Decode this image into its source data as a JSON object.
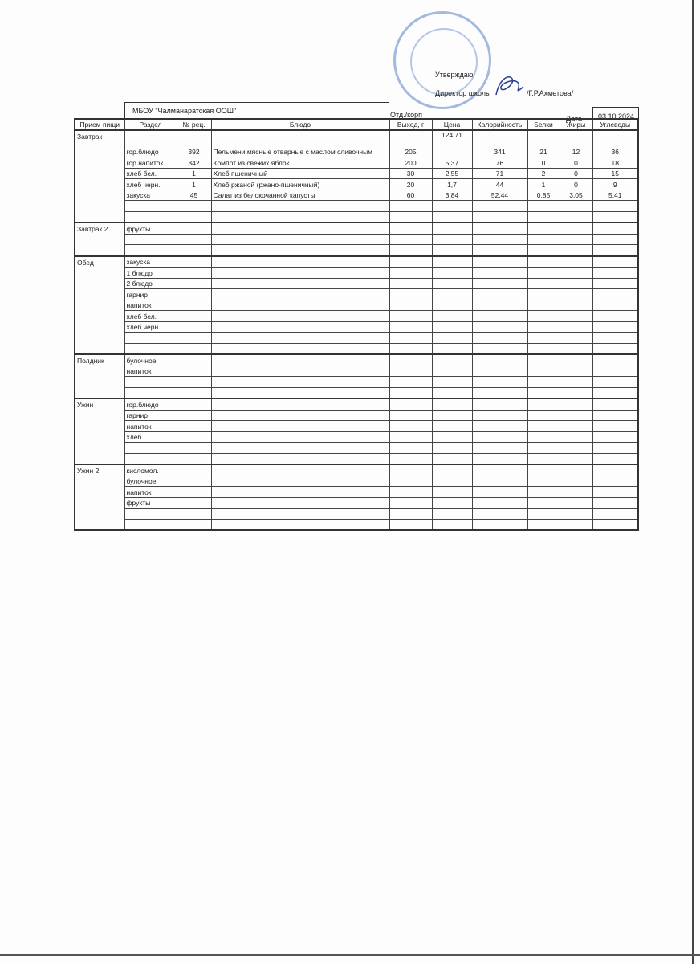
{
  "header": {
    "approve": "Утверждаю",
    "director": "Директор школы",
    "director_name": "/Г.Р.Ахметова/",
    "school": "МБОУ \"Чалманаратская ООШ\"",
    "dept": "Отд./корп",
    "date_label": "Дата",
    "date": "03.10.2024"
  },
  "columns": [
    "Прием пищи",
    "Раздел",
    "№ рец.",
    "Блюдо",
    "Выход, г",
    "Цена",
    "Калорийность",
    "Белки",
    "Жиры",
    "Углеводы"
  ],
  "meals": [
    {
      "name": "Завтрак",
      "rows": [
        [
          "гор.блюдо",
          "392",
          "Пельмени мясные отварные с маслом сливочным",
          "205",
          "124,71",
          "341",
          "21",
          "12",
          "36"
        ],
        [
          "гор.напиток",
          "342",
          "Компот из свежих яблок",
          "200",
          "5,37",
          "76",
          "0",
          "0",
          "18"
        ],
        [
          "хлеб бел.",
          "1",
          "Хлеб пшеничный",
          "30",
          "2,55",
          "71",
          "2",
          "0",
          "15"
        ],
        [
          "хлеб черн.",
          "1",
          "Хлеб ржаной (ржано-пшеничный)",
          "20",
          "1,7",
          "44",
          "1",
          "0",
          "9"
        ],
        [
          "закуска",
          "45",
          "Салат из белокочанной капусты",
          "60",
          "3,84",
          "52,44",
          "0,85",
          "3,05",
          "5,41"
        ],
        [
          "",
          "",
          "",
          "",
          "",
          "",
          "",
          "",
          ""
        ],
        [
          "",
          "",
          "",
          "",
          "",
          "",
          "",
          "",
          ""
        ]
      ]
    },
    {
      "name": "Завтрак 2",
      "rows": [
        [
          "фрукты"
        ],
        [
          ""
        ],
        [
          ""
        ]
      ]
    },
    {
      "name": "Обед",
      "rows": [
        [
          "закуска"
        ],
        [
          "1 блюдо"
        ],
        [
          "2 блюдо"
        ],
        [
          "гарнир"
        ],
        [
          "напиток"
        ],
        [
          "хлеб бел."
        ],
        [
          "хлеб черн."
        ],
        [
          ""
        ],
        [
          ""
        ]
      ]
    },
    {
      "name": "Полдник",
      "rows": [
        [
          "булочное"
        ],
        [
          "напиток"
        ],
        [
          ""
        ],
        [
          ""
        ]
      ]
    },
    {
      "name": "Ужин",
      "rows": [
        [
          "гор.блюдо"
        ],
        [
          "гарнир"
        ],
        [
          "напиток"
        ],
        [
          "хлеб"
        ],
        [
          ""
        ],
        [
          ""
        ]
      ]
    },
    {
      "name": "Ужин 2",
      "rows": [
        [
          "кисломол."
        ],
        [
          "булочное"
        ],
        [
          "напиток"
        ],
        [
          "фрукты"
        ],
        [
          ""
        ],
        [
          ""
        ]
      ]
    }
  ]
}
